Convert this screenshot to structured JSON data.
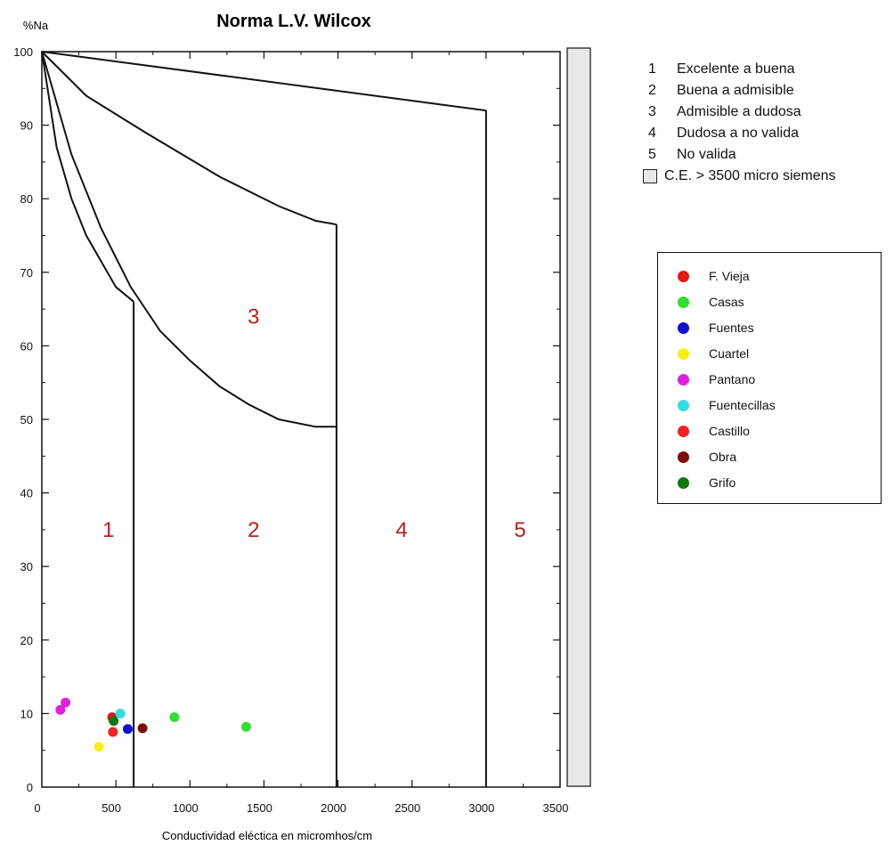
{
  "chart_data": {
    "type": "scatter",
    "title": "Norma L.V. Wilcox",
    "xlabel": "Conductividad eléctica en micromhos/cm",
    "ylabel": "%Na",
    "xlim": [
      0,
      3500
    ],
    "ylim": [
      0,
      100
    ],
    "x_ticks": [
      "0",
      "500",
      "1000",
      "1500",
      "2000",
      "2500",
      "3000",
      "3500"
    ],
    "y_ticks": [
      "0",
      "10",
      "20",
      "30",
      "40",
      "50",
      "60",
      "70",
      "80",
      "90",
      "100"
    ],
    "region_labels": [
      {
        "text": "1",
        "x": 450,
        "y": 35
      },
      {
        "text": "2",
        "x": 1430,
        "y": 35
      },
      {
        "text": "3",
        "x": 1430,
        "y": 64
      },
      {
        "text": "4",
        "x": 2430,
        "y": 35
      },
      {
        "text": "5",
        "x": 3230,
        "y": 35
      }
    ],
    "boundaries": {
      "curve_1_2": [
        [
          0,
          100
        ],
        [
          100,
          87
        ],
        [
          200,
          80
        ],
        [
          300,
          75
        ],
        [
          400,
          71.5
        ],
        [
          500,
          68
        ],
        [
          620,
          66
        ]
      ],
      "curve_2_3": [
        [
          0,
          100
        ],
        [
          200,
          86
        ],
        [
          400,
          76
        ],
        [
          600,
          68
        ],
        [
          800,
          62
        ],
        [
          1000,
          58
        ],
        [
          1200,
          54.5
        ],
        [
          1400,
          52
        ],
        [
          1600,
          50
        ],
        [
          1850,
          49
        ],
        [
          1990,
          49
        ]
      ],
      "curve_3_4": [
        [
          0,
          100
        ],
        [
          300,
          94
        ],
        [
          700,
          89
        ],
        [
          1200,
          83
        ],
        [
          1600,
          79
        ],
        [
          1850,
          77
        ],
        [
          1990,
          76.5
        ]
      ],
      "line_4_5": [
        [
          0,
          100
        ],
        [
          3000,
          92
        ]
      ],
      "verticals": [
        {
          "x": 620,
          "y_top": 66
        },
        {
          "x": 1990,
          "y_top": 76.5
        },
        {
          "x": 3000,
          "y_top": 92
        }
      ]
    },
    "series": [
      {
        "name": "F. Vieja",
        "color": "#e01919",
        "points": [
          [
            475,
            9.5
          ]
        ]
      },
      {
        "name": "Casas",
        "color": "#33dd33",
        "points": [
          [
            895,
            9.5
          ],
          [
            1380,
            8.2
          ]
        ]
      },
      {
        "name": "Fuentes",
        "color": "#1111cc",
        "points": [
          [
            580,
            7.9
          ]
        ]
      },
      {
        "name": "Cuartel",
        "color": "#f7ee1a",
        "points": [
          [
            385,
            5.5
          ]
        ]
      },
      {
        "name": "Pantano",
        "color": "#dd22dd",
        "points": [
          [
            125,
            10.5
          ],
          [
            160,
            11.5
          ]
        ]
      },
      {
        "name": "Fuentecillas",
        "color": "#33dddd",
        "points": [
          [
            530,
            10
          ]
        ]
      },
      {
        "name": "Castillo",
        "color": "#ee2222",
        "points": [
          [
            480,
            7.5
          ]
        ]
      },
      {
        "name": "Obra",
        "color": "#7a0f0f",
        "points": [
          [
            680,
            8
          ]
        ]
      },
      {
        "name": "Grifo",
        "color": "#117711",
        "points": [
          [
            485,
            9
          ]
        ]
      }
    ]
  },
  "legend": {
    "classes": [
      {
        "num": "1",
        "label": "Excelente a buena"
      },
      {
        "num": "2",
        "label": "Buena a admisible"
      },
      {
        "num": "3",
        "label": "Admisible  a dudosa"
      },
      {
        "num": "4",
        "label": "Dudosa a no valida"
      },
      {
        "num": "5",
        "label": "No valida"
      }
    ],
    "ce_note": "C.E. > 3500 micro siemens"
  }
}
